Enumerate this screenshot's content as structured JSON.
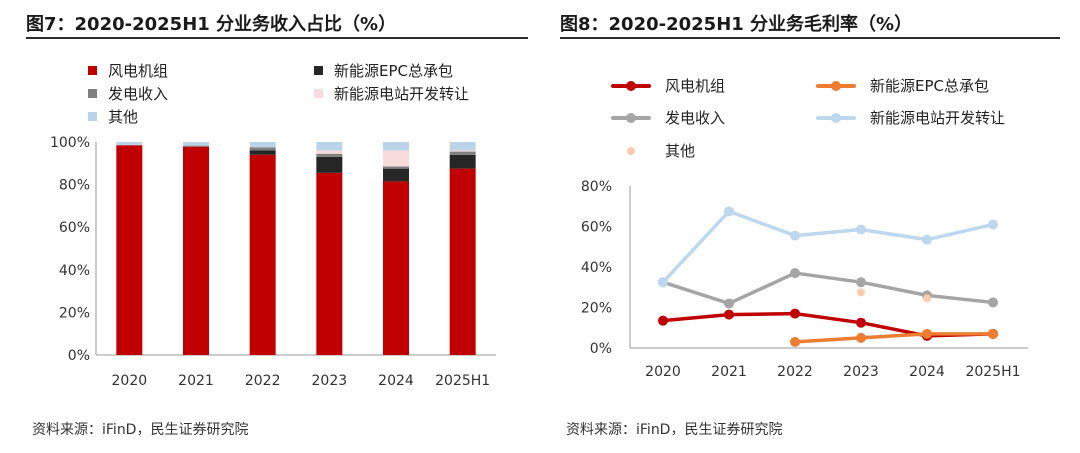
{
  "left_panel": {
    "title": "图7：2020-2025H1 分业务收入占比（%）",
    "source": "资料来源：iFinD，民生证券研究院"
  },
  "right_panel": {
    "title": "图8：2020-2025H1 分业务毛利率（%）",
    "source": "资料来源：iFinD，民生证券研究院"
  },
  "chart_data": [
    {
      "type": "bar",
      "stacked": true,
      "title": "图7：2020-2025H1 分业务收入占比（%）",
      "categories": [
        "2020",
        "2021",
        "2022",
        "2023",
        "2024",
        "2025H1"
      ],
      "y_ticks": [
        "0%",
        "20%",
        "40%",
        "60%",
        "80%",
        "100%"
      ],
      "ylim": [
        0,
        100
      ],
      "legend_position": "top",
      "series": [
        {
          "name": "风电机组",
          "color": "#c00000",
          "values": [
            98.5,
            97.8,
            94.0,
            85.5,
            81.5,
            87.5
          ]
        },
        {
          "name": "新能源EPC总承包",
          "color": "#262626",
          "values": [
            0.0,
            0.0,
            2.0,
            7.5,
            6.0,
            6.5
          ]
        },
        {
          "name": "发电收入",
          "color": "#7f7f7f",
          "values": [
            0.0,
            0.5,
            1.5,
            1.5,
            1.0,
            1.5
          ]
        },
        {
          "name": "新能源电站开发转让",
          "color": "#f8dcdc",
          "values": [
            0.0,
            0.0,
            0.0,
            1.5,
            7.5,
            0.5
          ]
        },
        {
          "name": "其他",
          "color": "#bcd4ea",
          "values": [
            1.5,
            1.7,
            2.5,
            4.0,
            4.0,
            4.0
          ]
        }
      ]
    },
    {
      "type": "line",
      "title": "图8：2020-2025H1 分业务毛利率（%）",
      "categories": [
        "2020",
        "2021",
        "2022",
        "2023",
        "2024",
        "2025H1"
      ],
      "y_ticks": [
        "0%",
        "20%",
        "40%",
        "60%",
        "80%"
      ],
      "ylim": [
        0,
        80
      ],
      "legend_position": "top",
      "series": [
        {
          "name": "风电机组",
          "color": "#c00000",
          "style": "line",
          "values": [
            13.5,
            16.5,
            17.0,
            12.5,
            6.0,
            7.0
          ]
        },
        {
          "name": "新能源EPC总承包",
          "color": "#ed7d31",
          "style": "line",
          "values": [
            null,
            null,
            3.0,
            5.0,
            7.0,
            7.0
          ]
        },
        {
          "name": "发电收入",
          "color": "#a5a5a5",
          "style": "line",
          "values": [
            32.5,
            22.0,
            37.0,
            32.5,
            26.0,
            22.5
          ]
        },
        {
          "name": "新能源电站开发转让",
          "color": "#bdd7ee",
          "style": "line",
          "values": [
            32.5,
            67.5,
            55.5,
            58.5,
            53.5,
            61.0
          ]
        },
        {
          "name": "其他",
          "color": "#f8cbad",
          "style": "marker",
          "values": [
            null,
            null,
            null,
            27.5,
            24.5,
            null
          ]
        }
      ]
    }
  ]
}
